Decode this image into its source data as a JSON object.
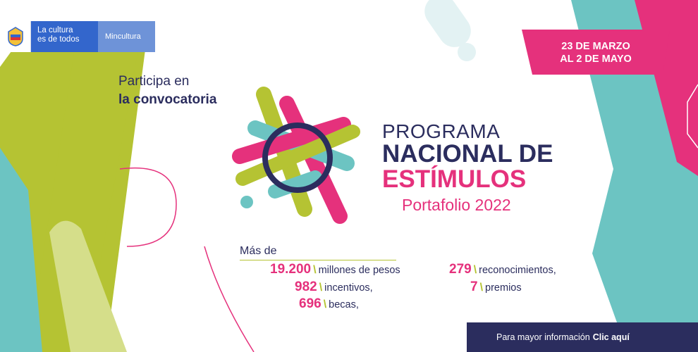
{
  "colors": {
    "lime": "#b5c333",
    "teal": "#6cc4c2",
    "pink": "#e5317c",
    "navy": "#2b2d5e",
    "gov_blue": "#3366cc",
    "gov_light_blue": "#6e93d8",
    "pale_teal": "#e3f2f3"
  },
  "header": {
    "seal_icon": "colombia-coat-of-arms",
    "culture_line1": "La cultura",
    "culture_line2": "es de todos",
    "ministry": "Mincultura"
  },
  "intro": {
    "line1": "Participa en",
    "line2": "la convocatoria"
  },
  "program": {
    "line1": "PROGRAMA",
    "line2": "NACIONAL DE",
    "line3": "ESTÍMULOS",
    "line4": "Portafolio 2022"
  },
  "dates": {
    "line1": "23 DE MARZO",
    "line2": "AL 2 DE MAYO"
  },
  "stats": {
    "lead": "Más de",
    "separator": "\\",
    "items": [
      {
        "number": "19.200",
        "label": "millones de pesos"
      },
      {
        "number": "982",
        "label": "incentivos,"
      },
      {
        "number": "696",
        "label": "becas,"
      },
      {
        "number": "279",
        "label": "reconocimientos,"
      },
      {
        "number": "7",
        "label": "premios"
      }
    ]
  },
  "footer": {
    "text": "Para mayor información",
    "link": "Clic aquí"
  }
}
